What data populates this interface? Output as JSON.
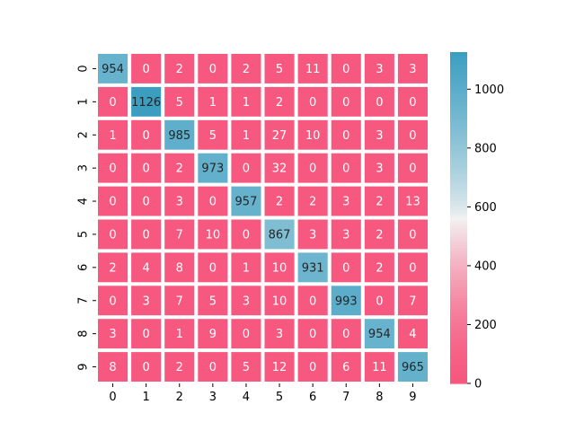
{
  "chart_data": {
    "type": "heatmap",
    "title": "",
    "xlabel": "",
    "ylabel": "",
    "x_tick_labels": [
      "0",
      "1",
      "2",
      "3",
      "4",
      "5",
      "6",
      "7",
      "8",
      "9"
    ],
    "y_tick_labels": [
      "0",
      "1",
      "2",
      "3",
      "4",
      "5",
      "6",
      "7",
      "8",
      "9"
    ],
    "matrix": [
      [
        954,
        0,
        2,
        0,
        2,
        5,
        11,
        0,
        3,
        3
      ],
      [
        0,
        1126,
        5,
        1,
        1,
        2,
        0,
        0,
        0,
        0
      ],
      [
        1,
        0,
        985,
        5,
        1,
        27,
        10,
        0,
        3,
        0
      ],
      [
        0,
        0,
        2,
        973,
        0,
        32,
        0,
        0,
        3,
        0
      ],
      [
        0,
        0,
        3,
        0,
        957,
        2,
        2,
        3,
        2,
        13
      ],
      [
        0,
        0,
        7,
        10,
        0,
        867,
        3,
        3,
        2,
        0
      ],
      [
        2,
        4,
        8,
        0,
        1,
        10,
        931,
        0,
        2,
        0
      ],
      [
        0,
        3,
        7,
        5,
        3,
        10,
        0,
        993,
        0,
        7
      ],
      [
        3,
        0,
        1,
        9,
        0,
        3,
        0,
        0,
        954,
        4
      ],
      [
        8,
        0,
        2,
        0,
        5,
        12,
        0,
        6,
        11,
        965
      ]
    ],
    "colorbar": {
      "min": 0,
      "max": 1126,
      "tick_labels": [
        "0",
        "200",
        "400",
        "600",
        "800",
        "1000"
      ],
      "tick_values": [
        0,
        200,
        400,
        600,
        800,
        1000
      ]
    },
    "colors": {
      "low": "#f6587f",
      "mid": "#f2f2f2",
      "high": "#3b9ec1",
      "cell_separator": "#ffffff"
    },
    "grid": false
  }
}
